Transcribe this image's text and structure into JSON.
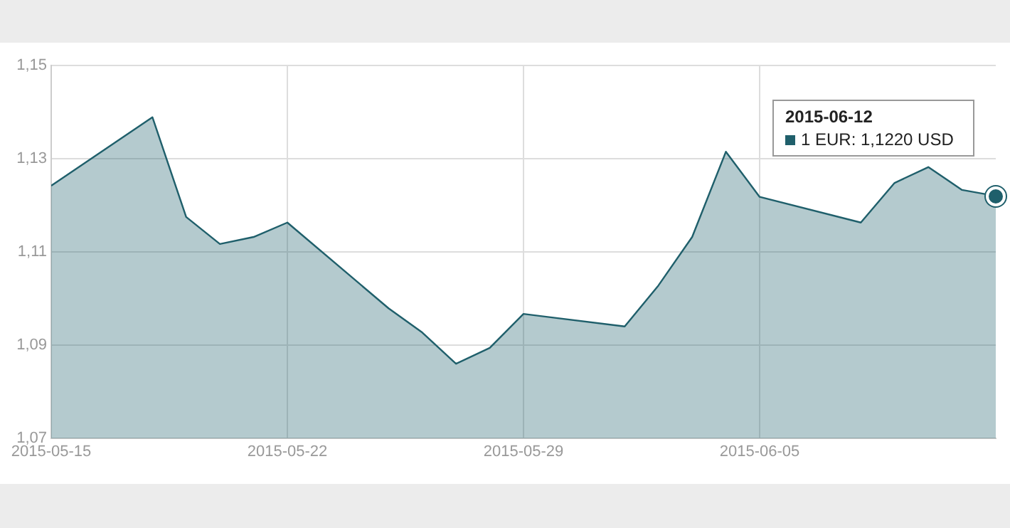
{
  "chart_data": {
    "type": "area",
    "x": [
      "2015-05-15",
      "2015-05-18",
      "2015-05-19",
      "2015-05-20",
      "2015-05-21",
      "2015-05-22",
      "2015-05-25",
      "2015-05-26",
      "2015-05-27",
      "2015-05-28",
      "2015-05-29",
      "2015-06-01",
      "2015-06-02",
      "2015-06-03",
      "2015-06-04",
      "2015-06-05",
      "2015-06-08",
      "2015-06-09",
      "2015-06-10",
      "2015-06-11",
      "2015-06-12"
    ],
    "series": [
      {
        "color": "#1f5f6b",
        "values": [
          1.1242,
          1.1389,
          1.1175,
          1.1117,
          1.1132,
          1.1163,
          1.0979,
          1.0927,
          1.086,
          1.0894,
          1.0967,
          1.094,
          1.1028,
          1.1132,
          1.1315,
          1.1218,
          1.1163,
          1.1248,
          1.1282,
          1.1233,
          1.122
        ]
      }
    ],
    "xlim": [
      "2015-05-15",
      "2015-06-12"
    ],
    "xticks": [
      "2015-05-15",
      "2015-05-22",
      "2015-05-29",
      "2015-06-05"
    ],
    "ylim": [
      1.07,
      1.15
    ],
    "yticks": [
      {
        "value": 1.07,
        "label": "1,07"
      },
      {
        "value": 1.09,
        "label": "1,09"
      },
      {
        "value": 1.11,
        "label": "1,11"
      },
      {
        "value": 1.13,
        "label": "1,13"
      },
      {
        "value": 1.15,
        "label": "1,15"
      }
    ],
    "grid": true,
    "legend": false,
    "marker": "none",
    "annotations": [
      "2015-06-12",
      "1 EUR: 1,1220 USD"
    ]
  }
}
